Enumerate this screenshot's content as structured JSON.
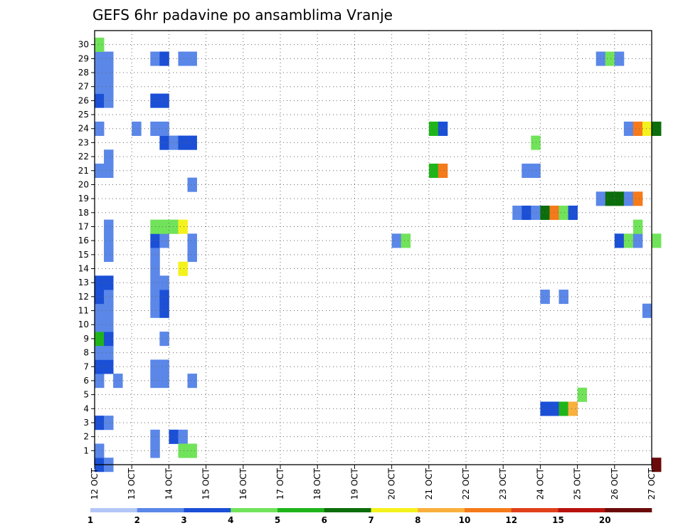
{
  "chart_data": {
    "type": "heatmap",
    "title": "GEFS 6hr padavine po ansamblima Vranje",
    "xlabel": "",
    "ylabel": "",
    "x_tick_labels": [
      "12 OCT",
      "13 OCT",
      "14 OCT",
      "15 OCT",
      "16 OCT",
      "17 OCT",
      "18 OCT",
      "19 OCT",
      "20 OCT",
      "21 OCT",
      "22 OCT",
      "23 OCT",
      "24 OCT",
      "25 OCT",
      "26 OCT",
      "27 OCT"
    ],
    "y_tick_labels": [
      "1",
      "2",
      "3",
      "4",
      "5",
      "6",
      "7",
      "8",
      "9",
      "10",
      "11",
      "12",
      "13",
      "14",
      "15",
      "16",
      "17",
      "18",
      "19",
      "20",
      "21",
      "22",
      "23",
      "24",
      "25",
      "26",
      "27",
      "28",
      "29",
      "30"
    ],
    "ylim": [
      0,
      30
    ],
    "x_steps_per_day": 4,
    "grid": true,
    "colorbar": {
      "labels": [
        "1",
        "2",
        "3",
        "4",
        "5",
        "6",
        "7",
        "8",
        "10",
        "12",
        "15",
        "20"
      ],
      "colors": [
        "#b3c7f7",
        "#5a87e8",
        "#1a4fd6",
        "#71e35a",
        "#1fb51a",
        "#0b6e0b",
        "#f4f21c",
        "#f9b03c",
        "#f57a1a",
        "#e0401a",
        "#b8120e",
        "#6b0a0a"
      ]
    },
    "cells": [
      [
        0,
        0,
        2
      ],
      [
        1,
        0,
        1
      ],
      [
        0,
        1,
        1
      ],
      [
        0,
        3,
        2
      ],
      [
        1,
        3,
        1
      ],
      [
        0,
        6,
        1
      ],
      [
        2,
        6,
        1
      ],
      [
        0,
        7,
        2
      ],
      [
        1,
        7,
        2
      ],
      [
        0,
        8,
        1
      ],
      [
        1,
        8,
        1
      ],
      [
        0,
        9,
        4
      ],
      [
        1,
        9,
        2
      ],
      [
        0,
        10,
        1
      ],
      [
        1,
        10,
        1
      ],
      [
        0,
        11,
        1
      ],
      [
        1,
        11,
        1
      ],
      [
        0,
        12,
        2
      ],
      [
        1,
        12,
        1
      ],
      [
        0,
        13,
        2
      ],
      [
        1,
        13,
        2
      ],
      [
        1,
        15,
        1
      ],
      [
        1,
        16,
        1
      ],
      [
        1,
        17,
        1
      ],
      [
        0,
        21,
        1
      ],
      [
        1,
        21,
        1
      ],
      [
        1,
        22,
        1
      ],
      [
        0,
        24,
        1
      ],
      [
        0,
        26,
        2
      ],
      [
        1,
        26,
        1
      ],
      [
        0,
        27,
        1
      ],
      [
        1,
        27,
        1
      ],
      [
        0,
        28,
        1
      ],
      [
        1,
        28,
        1
      ],
      [
        0,
        29,
        1
      ],
      [
        1,
        29,
        1
      ],
      [
        0,
        30,
        3
      ],
      [
        4,
        24,
        1
      ],
      [
        6,
        1,
        1
      ],
      [
        6,
        2,
        1
      ],
      [
        6,
        6,
        1
      ],
      [
        7,
        6,
        1
      ],
      [
        6,
        7,
        1
      ],
      [
        7,
        7,
        1
      ],
      [
        7,
        9,
        1
      ],
      [
        6,
        11,
        1
      ],
      [
        7,
        11,
        2
      ],
      [
        6,
        12,
        1
      ],
      [
        7,
        12,
        2
      ],
      [
        6,
        13,
        1
      ],
      [
        7,
        13,
        1
      ],
      [
        6,
        14,
        1
      ],
      [
        6,
        15,
        1
      ],
      [
        6,
        16,
        2
      ],
      [
        7,
        16,
        1
      ],
      [
        6,
        17,
        3
      ],
      [
        7,
        17,
        3
      ],
      [
        8,
        17,
        3
      ],
      [
        9,
        17,
        6
      ],
      [
        9,
        14,
        6
      ],
      [
        10,
        15,
        1
      ],
      [
        10,
        16,
        1
      ],
      [
        8,
        2,
        2
      ],
      [
        9,
        2,
        1
      ],
      [
        9,
        1,
        3
      ],
      [
        10,
        1,
        3
      ],
      [
        10,
        6,
        1
      ],
      [
        10,
        20,
        1
      ],
      [
        7,
        23,
        2
      ],
      [
        8,
        23,
        1
      ],
      [
        9,
        23,
        2
      ],
      [
        10,
        23,
        2
      ],
      [
        6,
        24,
        1
      ],
      [
        7,
        24,
        1
      ],
      [
        6,
        26,
        2
      ],
      [
        7,
        26,
        2
      ],
      [
        6,
        29,
        1
      ],
      [
        7,
        29,
        2
      ],
      [
        9,
        29,
        1
      ],
      [
        10,
        29,
        1
      ],
      [
        32,
        16,
        1
      ],
      [
        33,
        16,
        3
      ],
      [
        36,
        21,
        4
      ],
      [
        37,
        21,
        8
      ],
      [
        36,
        24,
        4
      ],
      [
        37,
        24,
        2
      ],
      [
        45,
        18,
        1
      ],
      [
        46,
        18,
        2
      ],
      [
        47,
        18,
        1
      ],
      [
        48,
        18,
        5
      ],
      [
        49,
        18,
        8
      ],
      [
        50,
        18,
        3
      ],
      [
        51,
        18,
        2
      ],
      [
        46,
        21,
        1
      ],
      [
        47,
        21,
        1
      ],
      [
        47,
        23,
        3
      ],
      [
        48,
        4,
        2
      ],
      [
        48,
        12,
        1
      ],
      [
        49,
        4,
        2
      ],
      [
        50,
        4,
        4
      ],
      [
        51,
        4,
        7
      ],
      [
        50,
        12,
        1
      ],
      [
        52,
        5,
        3
      ],
      [
        54,
        19,
        1
      ],
      [
        55,
        19,
        5
      ],
      [
        56,
        19,
        5
      ],
      [
        57,
        19,
        1
      ],
      [
        58,
        19,
        8
      ],
      [
        56,
        16,
        2
      ],
      [
        57,
        16,
        3
      ],
      [
        58,
        16,
        1
      ],
      [
        58,
        17,
        3
      ],
      [
        60,
        16,
        3
      ],
      [
        54,
        29,
        1
      ],
      [
        55,
        29,
        3
      ],
      [
        56,
        29,
        1
      ],
      [
        57,
        24,
        1
      ],
      [
        58,
        24,
        8
      ],
      [
        59,
        24,
        6
      ],
      [
        60,
        24,
        5
      ],
      [
        59,
        11,
        1
      ],
      [
        60,
        0,
        11
      ]
    ]
  }
}
